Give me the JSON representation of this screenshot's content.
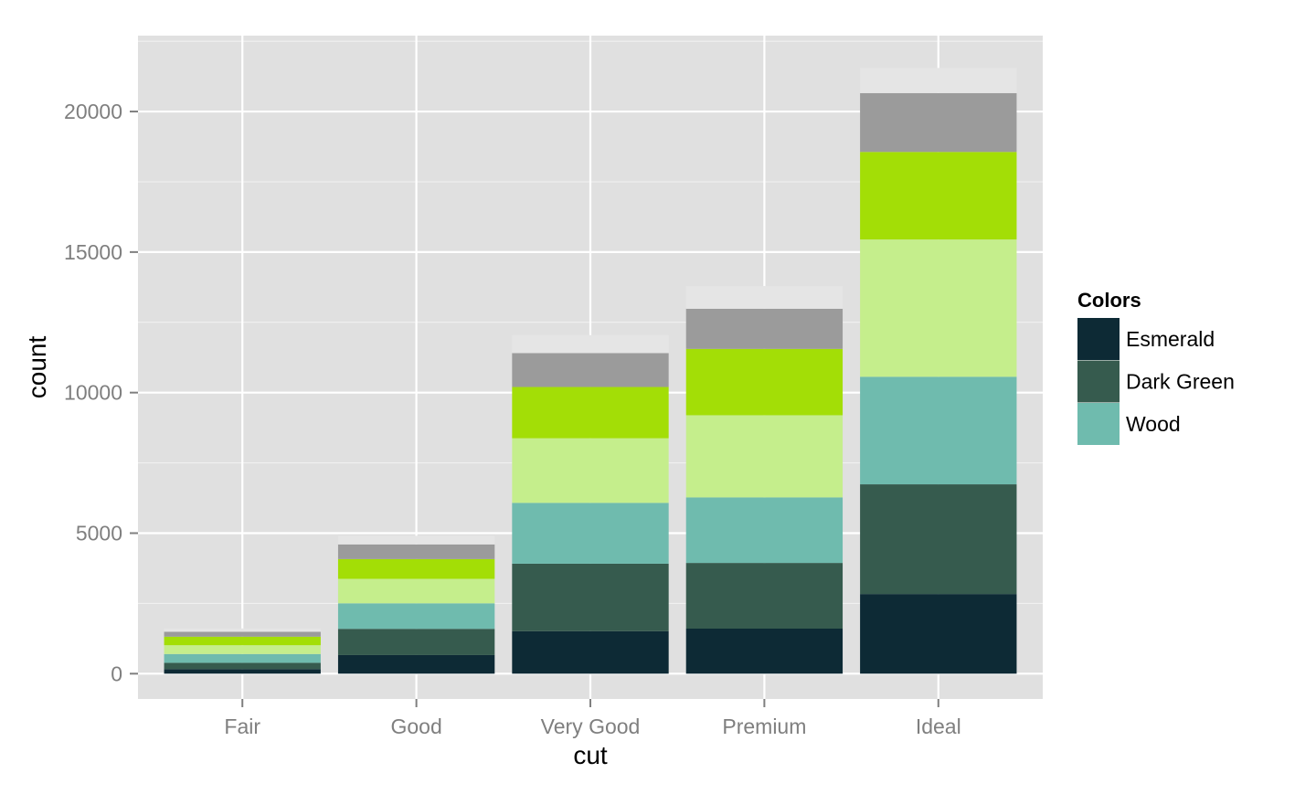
{
  "chart_data": {
    "type": "bar",
    "stacked": true,
    "categories": [
      "Fair",
      "Good",
      "Very Good",
      "Premium",
      "Ideal"
    ],
    "series": [
      {
        "name": "Esmerald",
        "color": "#0d2a35",
        "values": [
          163,
          662,
          1513,
          1603,
          2834
        ]
      },
      {
        "name": "Dark Green",
        "color": "#365b4e",
        "values": [
          224,
          933,
          2400,
          2337,
          3903
        ]
      },
      {
        "name": "Wood",
        "color": "#6fbbae",
        "values": [
          312,
          909,
          2164,
          2331,
          3826
        ]
      },
      {
        "values": [
          314,
          871,
          2299,
          2924,
          4884
        ],
        "color": "#c5ee8c"
      },
      {
        "values": [
          303,
          702,
          1824,
          2360,
          3115
        ],
        "color": "#a3de06"
      },
      {
        "values": [
          175,
          522,
          1204,
          1428,
          2093
        ],
        "color": "#9b9b9b"
      },
      {
        "values": [
          119,
          307,
          643,
          808,
          896
        ],
        "color": "#e5e5e5"
      }
    ],
    "xlabel": "cut",
    "ylabel": "count",
    "yticks": [
      0,
      5000,
      10000,
      15000,
      20000
    ],
    "ylim": [
      -900,
      22700
    ],
    "grid": true,
    "panel_background": "#e0e0e0",
    "legend": {
      "title": "Colors",
      "placement": "right",
      "entries": [
        "Esmerald",
        "Dark Green",
        "Wood"
      ]
    }
  }
}
